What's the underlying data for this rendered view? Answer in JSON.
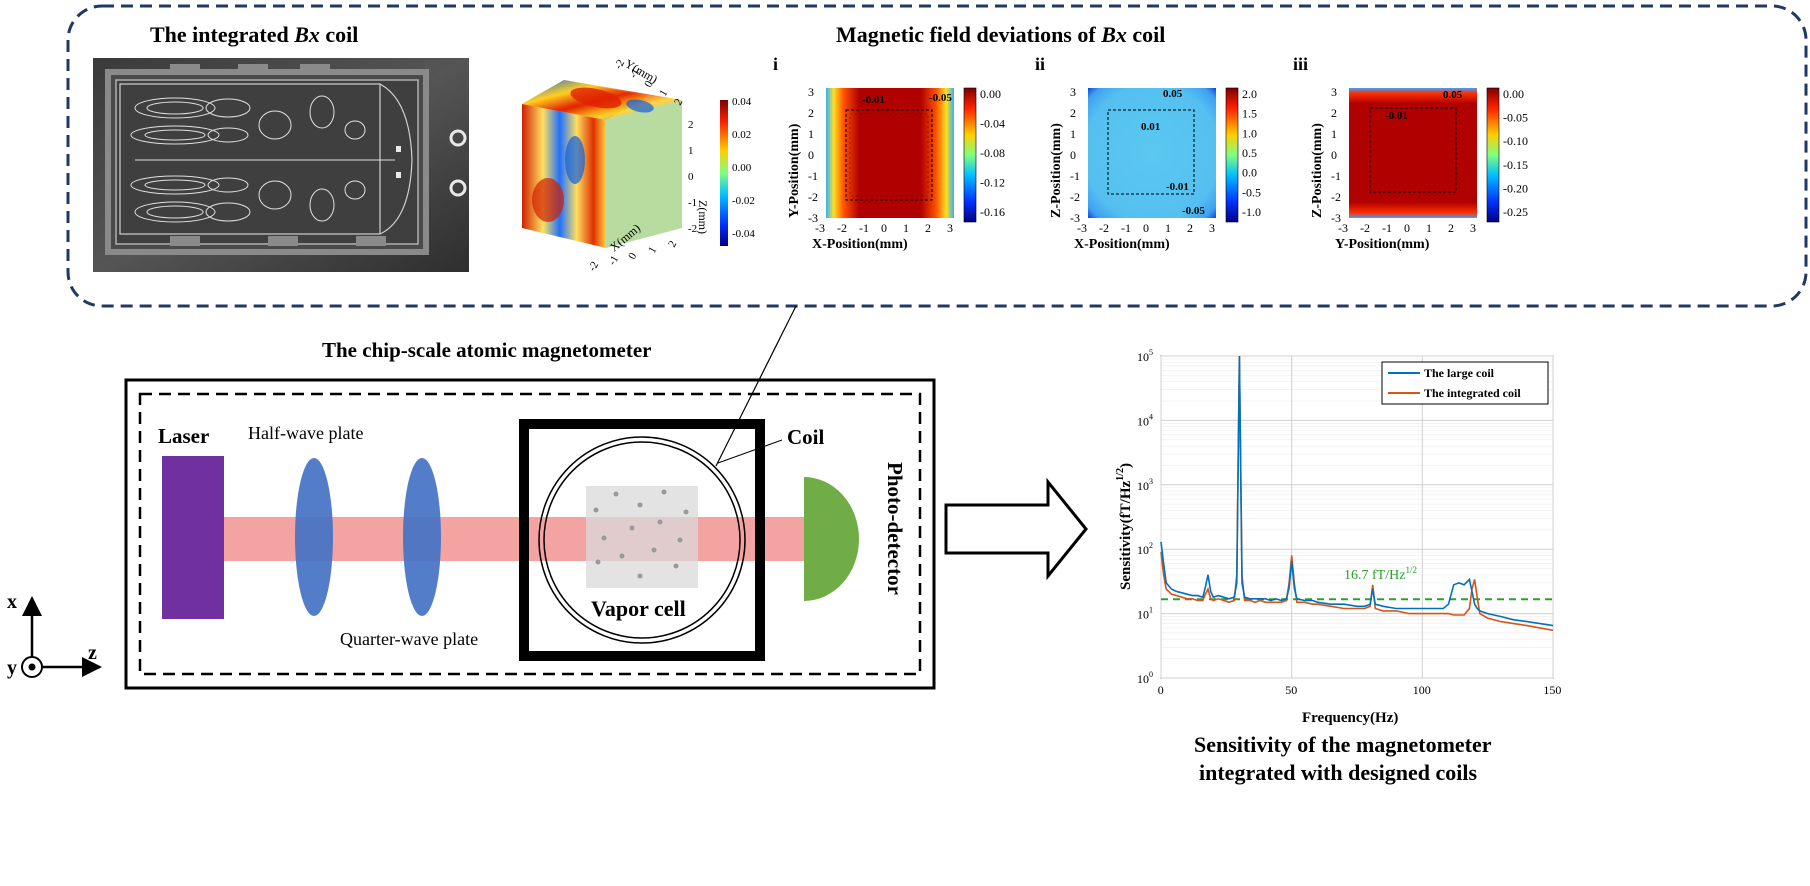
{
  "top": {
    "photo_title_prefix": "The integrated ",
    "photo_title_italic": "Bx",
    "photo_title_suffix": " coil",
    "deviation_title_prefix": "Magnetic field deviations of ",
    "deviation_title_italic": "Bx",
    "deviation_title_suffix": " coil",
    "cube": {
      "y_axis_label": "Y(mm)",
      "x_axis_label": "X(mm)",
      "z_axis_label": "Z(mm)",
      "y_ticks": [
        "-2",
        "-1",
        "0",
        "1",
        "2"
      ],
      "x_ticks": [
        "-2",
        "-1",
        "0",
        "1",
        "2"
      ],
      "z_ticks": [
        "2",
        "1",
        "0",
        "-1",
        "-2"
      ],
      "colorbar_ticks": [
        "0.04",
        "0.02",
        "0.00",
        "-0.02",
        "-0.04"
      ]
    },
    "panels": [
      {
        "label": "i",
        "xlabel": "X-Position(mm)",
        "ylabel": "Y-Position(mm)",
        "ticks": [
          "-3",
          "-2",
          "-1",
          "0",
          "1",
          "2",
          "3"
        ],
        "colorbar_ticks": [
          "0.00",
          "-0.04",
          "-0.08",
          "-0.12",
          "-0.16"
        ],
        "annotations": [
          "-0.01",
          "-0.05"
        ]
      },
      {
        "label": "ii",
        "xlabel": "X-Position(mm)",
        "ylabel": "Z-Position(mm)",
        "ticks": [
          "-3",
          "-2",
          "-1",
          "0",
          "1",
          "2",
          "3"
        ],
        "colorbar_ticks": [
          "2.0",
          "1.5",
          "1.0",
          "0.5",
          "0.0",
          "-0.5",
          "-1.0"
        ],
        "annotations": [
          "0.05",
          "0.01",
          "-0.01",
          "-0.05"
        ]
      },
      {
        "label": "iii",
        "xlabel": "Y-Position(mm)",
        "ylabel": "Z-Position(mm)",
        "ticks": [
          "-3",
          "-2",
          "-1",
          "0",
          "1",
          "2",
          "3"
        ],
        "colorbar_ticks": [
          "0.00",
          "-0.05",
          "-0.10",
          "-0.15",
          "-0.20",
          "-0.25"
        ],
        "annotations": [
          "-0.01",
          "0.05"
        ]
      }
    ]
  },
  "magnetometer": {
    "title": "The chip-scale atomic magnetometer",
    "laser_label": "Laser",
    "half_wave_label": "Half-wave plate",
    "quarter_wave_label": "Quarter-wave plate",
    "coil_label": "Coil",
    "vapor_cell_label": "Vapor cell",
    "photodetector_label": "Photo-detector",
    "axis_x": "x",
    "axis_y": "y",
    "axis_z": "z"
  },
  "sensitivity": {
    "caption_line1": "Sensitivity of the magnetometer",
    "caption_line2": "integrated with designed coils",
    "ylabel_main": "Sensitivity(fT/Hz",
    "ylabel_sup": "1/2",
    "ylabel_end": ")",
    "xlabel": "Frequency(Hz)",
    "y_tick_exponents": [
      "5",
      "4",
      "3",
      "2",
      "1",
      "0"
    ],
    "x_ticks": [
      "0",
      "50",
      "100",
      "150"
    ],
    "threshold_label": "16.7 fT/Hz",
    "threshold_sup": "1/2"
  },
  "chart_data": {
    "type": "line",
    "xlabel": "Frequency(Hz)",
    "ylabel": "Sensitivity(fT/Hz^1/2)",
    "xlim": [
      0,
      150
    ],
    "ylim": [
      1,
      100000
    ],
    "y_scale": "log",
    "grid": true,
    "legend_position": "top-right",
    "threshold": {
      "value": 16.7,
      "label": "16.7 fT/Hz^1/2",
      "color": "#2ca02c",
      "style": "dashed"
    },
    "series": [
      {
        "name": "The large coil",
        "color": "#0072bd",
        "x": [
          0,
          1,
          2,
          4,
          6,
          8,
          10,
          12,
          14,
          16,
          17,
          18,
          19,
          20,
          22,
          24,
          26,
          28,
          29,
          30,
          31,
          32,
          34,
          36,
          38,
          40,
          42,
          44,
          46,
          48,
          49,
          50,
          51,
          52,
          55,
          58,
          60,
          65,
          70,
          75,
          78,
          80,
          81,
          82,
          85,
          90,
          95,
          100,
          105,
          108,
          110,
          112,
          114,
          116,
          118,
          119,
          120,
          121,
          122,
          125,
          130,
          135,
          140,
          145,
          150
        ],
        "y": [
          130,
          60,
          30,
          24,
          22,
          21,
          20,
          19,
          19,
          18,
          26,
          40,
          22,
          18,
          19,
          18,
          17,
          18,
          30,
          100000,
          30,
          18,
          17,
          17,
          17,
          17,
          16,
          17,
          16,
          17,
          25,
          65,
          25,
          17,
          16,
          16,
          15,
          14,
          14,
          13,
          13,
          14,
          24,
          14,
          13,
          12,
          12,
          12,
          12,
          12,
          14,
          28,
          30,
          28,
          34,
          22,
          14,
          12,
          11,
          10,
          9,
          8,
          7.5,
          7,
          6.5
        ]
      },
      {
        "name": "The integrated coil",
        "color": "#d95319",
        "x": [
          0,
          1,
          2,
          4,
          6,
          8,
          10,
          12,
          14,
          16,
          17,
          18,
          19,
          20,
          22,
          24,
          26,
          28,
          29,
          30,
          31,
          32,
          34,
          36,
          38,
          40,
          42,
          44,
          46,
          48,
          49,
          50,
          51,
          52,
          55,
          58,
          60,
          65,
          70,
          75,
          78,
          80,
          81,
          82,
          85,
          90,
          95,
          100,
          105,
          108,
          110,
          112,
          114,
          116,
          118,
          119,
          120,
          121,
          122,
          125,
          130,
          135,
          140,
          145,
          150
        ],
        "y": [
          90,
          40,
          24,
          20,
          19,
          18,
          17,
          17,
          16,
          16,
          20,
          24,
          17,
          16,
          17,
          16,
          15,
          16,
          40,
          100000,
          40,
          16,
          16,
          15,
          16,
          15,
          15,
          15,
          15,
          16,
          30,
          80,
          30,
          15,
          15,
          14,
          14,
          13,
          12,
          12,
          12,
          13,
          28,
          12,
          11,
          11,
          10,
          10,
          10,
          10,
          10,
          9.5,
          9.5,
          9.5,
          12,
          24,
          34,
          18,
          10,
          8.5,
          7.5,
          7,
          6.5,
          6,
          5.5
        ]
      }
    ]
  },
  "colors": {
    "panel_border": "#1f3864",
    "laser": "#7030a0",
    "plates": "#4472c4",
    "beam": "#f4a3a3",
    "detector": "#70ad47",
    "threshold": "#2ca02c"
  }
}
